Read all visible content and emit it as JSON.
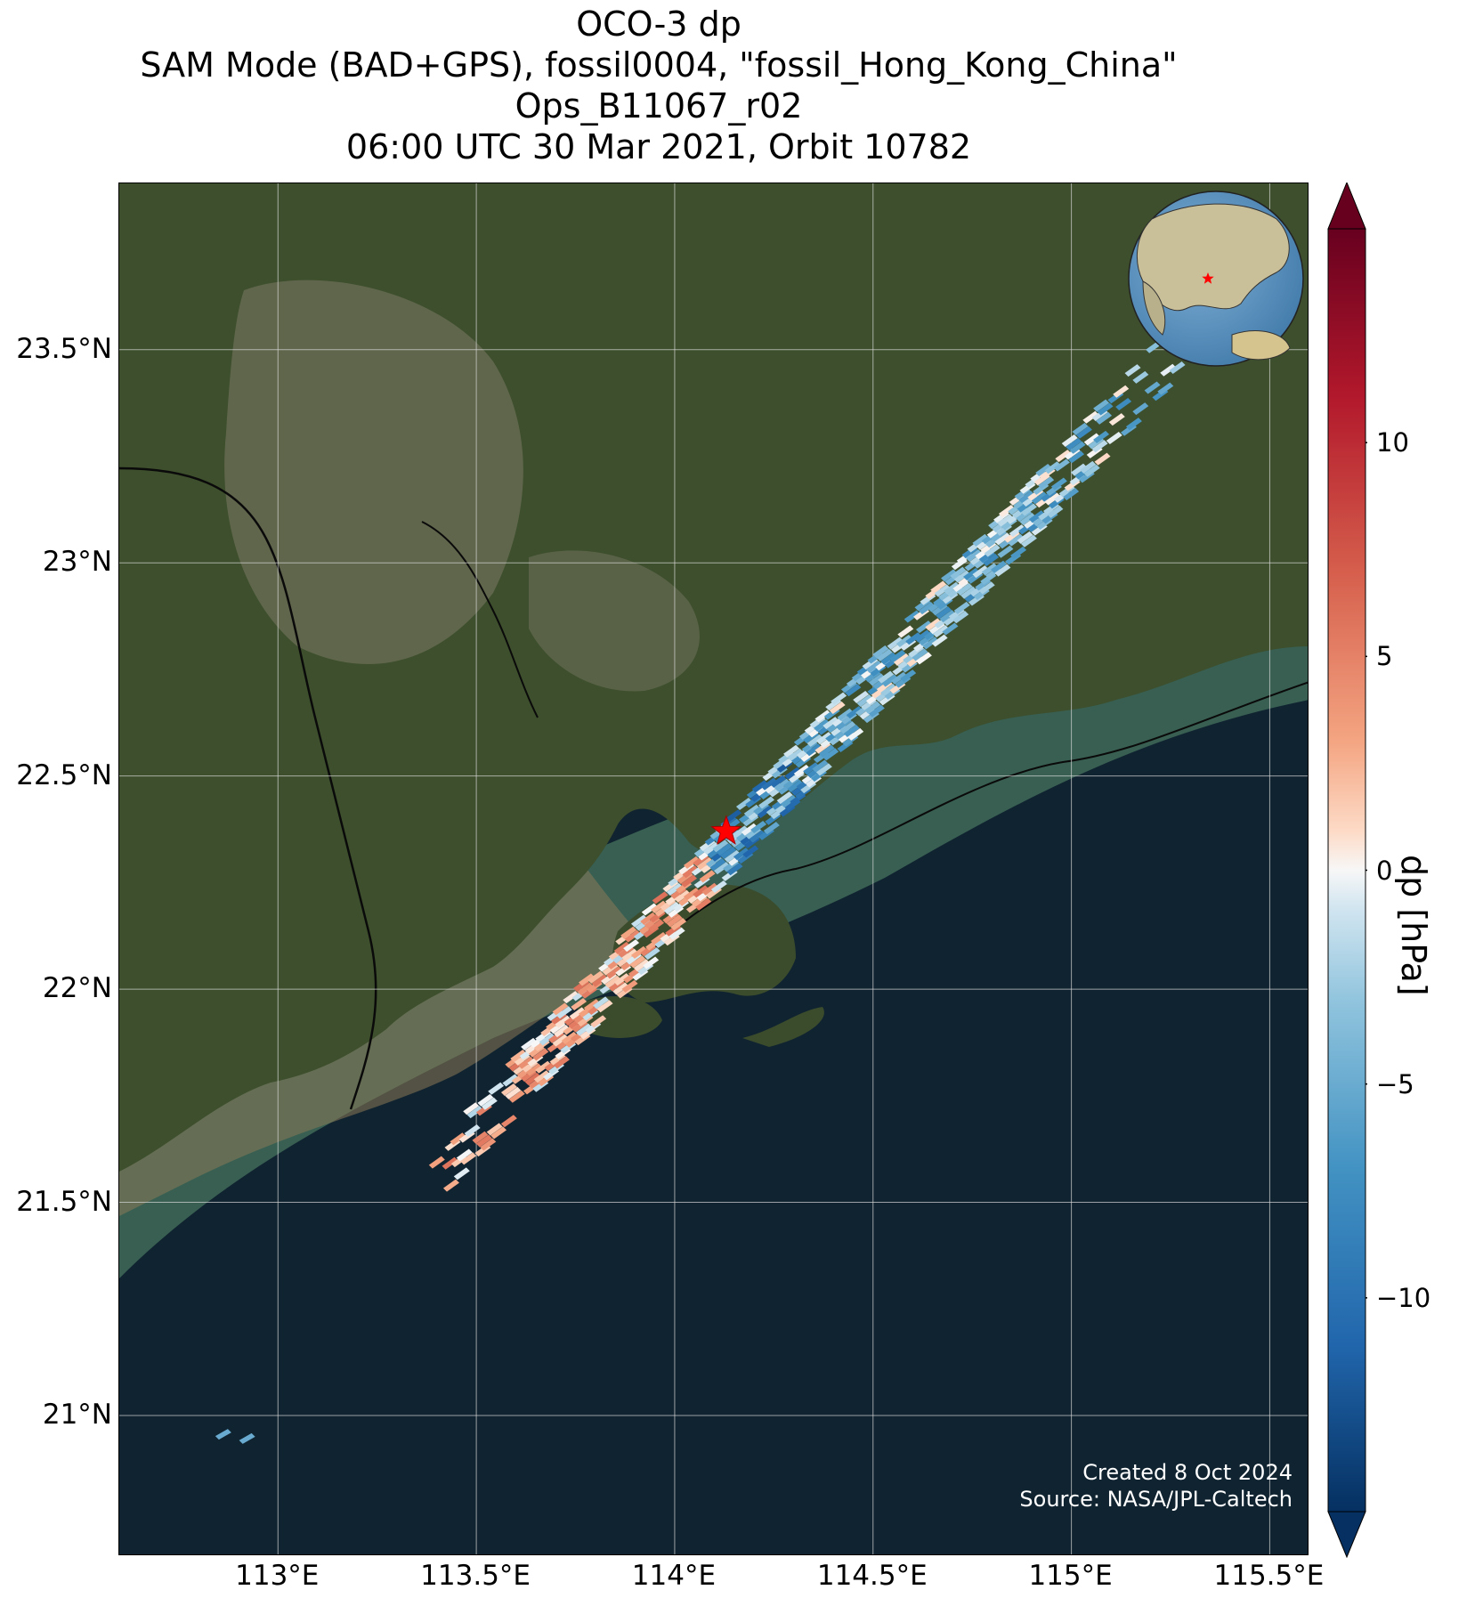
{
  "title": {
    "line1": "OCO-3 dp",
    "line2": "SAM Mode (BAD+GPS), fossil0004, \"fossil_Hong_Kong_China\"",
    "line3": "Ops_B11067_r02",
    "line4": "06:00 UTC 30 Mar 2021, Orbit 10782"
  },
  "map": {
    "lon_range": [
      112.6,
      115.6
    ],
    "lat_range": [
      20.67,
      23.89
    ],
    "grid": true,
    "lat_ticks": [
      {
        "value": 23.5,
        "label": "23.5°N"
      },
      {
        "value": 23.0,
        "label": "23°N"
      },
      {
        "value": 22.5,
        "label": "22.5°N"
      },
      {
        "value": 22.0,
        "label": "22°N"
      },
      {
        "value": 21.5,
        "label": "21.5°N"
      },
      {
        "value": 21.0,
        "label": "21°N"
      }
    ],
    "lon_ticks": [
      {
        "value": 113.0,
        "label": "113°E"
      },
      {
        "value": 113.5,
        "label": "113.5°E"
      },
      {
        "value": 114.0,
        "label": "114°E"
      },
      {
        "value": 114.5,
        "label": "114.5°E"
      },
      {
        "value": 115.0,
        "label": "115°E"
      },
      {
        "value": 115.5,
        "label": "115.5°E"
      }
    ],
    "target": {
      "lon": 114.13,
      "lat": 22.37,
      "marker": "red-star"
    },
    "inset_globe": {
      "marker": "red-star",
      "region": "East Asia"
    },
    "colors": {
      "land": "#3d4f2c",
      "sea": "#102330",
      "coastal_water": "#3f6a58",
      "grid": "#d8d8d8"
    }
  },
  "colorbar": {
    "label": "dp [hPa]",
    "vmin": -15,
    "vmax": 15,
    "colormap": "RdBu_r",
    "extend": "both",
    "ticks": [
      {
        "value": 10,
        "label": "10"
      },
      {
        "value": 5,
        "label": "5"
      },
      {
        "value": 0,
        "label": "0"
      },
      {
        "value": -5,
        "label": "−5"
      },
      {
        "value": -10,
        "label": "−10"
      }
    ]
  },
  "credits": {
    "created": "Created 8 Oct 2024",
    "source": "Source: NASA/JPL-Caltech"
  }
}
